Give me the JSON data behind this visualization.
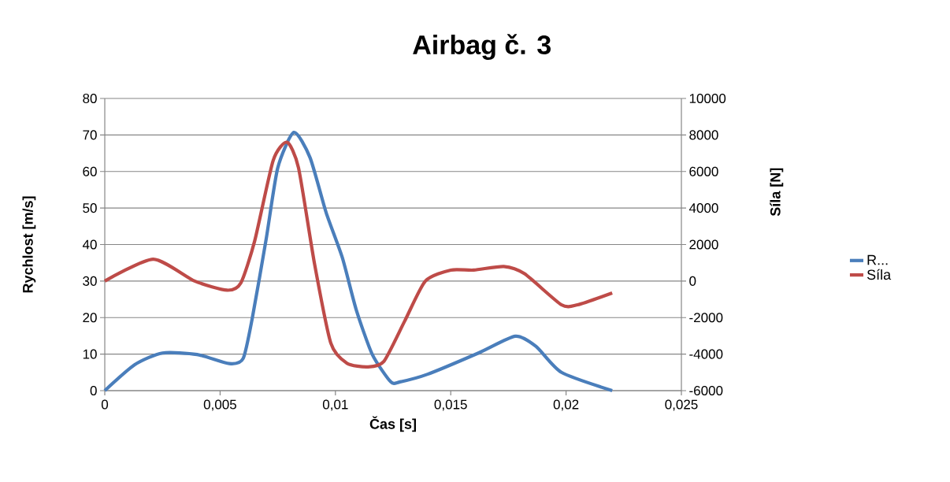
{
  "chart_data": {
    "type": "line",
    "title": "Airbag č. 3",
    "xlabel": "Čas [s]",
    "ylabel": "Rychlost [m/s]",
    "y2label": "Síla [N]",
    "xlim": [
      0,
      0.025
    ],
    "xticks": [
      {
        "value": 0,
        "label": "0"
      },
      {
        "value": 0.005,
        "label": "0,005"
      },
      {
        "value": 0.01,
        "label": "0,01"
      },
      {
        "value": 0.015,
        "label": "0,015"
      },
      {
        "value": 0.02,
        "label": "0,02"
      },
      {
        "value": 0.025,
        "label": "0,025"
      }
    ],
    "ylim": [
      0,
      80
    ],
    "yticks": [
      0,
      10,
      20,
      30,
      40,
      50,
      60,
      70,
      80
    ],
    "y2lim": [
      -6000,
      10000
    ],
    "y2ticks": [
      -6000,
      -4000,
      -2000,
      0,
      2000,
      4000,
      6000,
      8000,
      10000
    ],
    "grid": "y",
    "legend": "right",
    "marker": "none",
    "line_style": "solid",
    "series": [
      {
        "name": "R...",
        "color": "#4a7ebb",
        "x": [
          0,
          0.0013,
          0.0025,
          0.004,
          0.0054,
          0.006,
          0.0064,
          0.007,
          0.0075,
          0.0082,
          0.0089,
          0.0096,
          0.0103,
          0.0109,
          0.0116,
          0.0124,
          0.0128,
          0.014,
          0.0162,
          0.0178,
          0.0187,
          0.0198,
          0.022
        ],
        "values": [
          0,
          7.1,
          10.3,
          9.9,
          7.4,
          8.8,
          20,
          41.6,
          61,
          70.7,
          63.8,
          48.7,
          36.4,
          22.2,
          9.9,
          2.4,
          2.4,
          4.5,
          10.3,
          14.9,
          12.1,
          5,
          0
        ]
      },
      {
        "name": "Síla",
        "color": "#be4b48",
        "axis": "y2",
        "x": [
          0,
          0.0021,
          0.0039,
          0.0053,
          0.0059,
          0.0065,
          0.0073,
          0.0079,
          0.0084,
          0.0091,
          0.0098,
          0.0105,
          0.0114,
          0.0121,
          0.013,
          0.0139,
          0.015,
          0.016,
          0.0173,
          0.0182,
          0.0198,
          0.0205,
          0.022
        ],
        "values": [
          0,
          1200,
          0,
          -500,
          -100,
          2200,
          6600,
          7600,
          6200,
          900,
          -3400,
          -4500,
          -4700,
          -4400,
          -2200,
          0,
          600,
          600,
          800,
          400,
          -1300,
          -1300,
          -650
        ]
      }
    ]
  }
}
